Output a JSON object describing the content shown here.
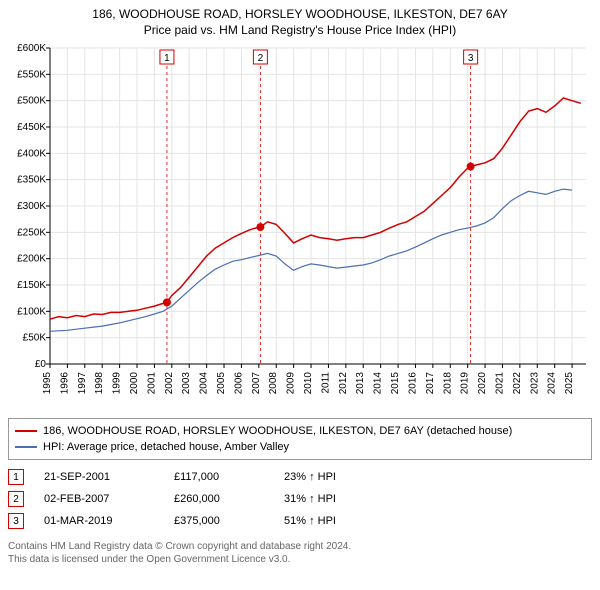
{
  "title_line1": "186, WOODHOUSE ROAD, HORSLEY WOODHOUSE, ILKESTON, DE7 6AY",
  "title_line2": "Price paid vs. HM Land Registry's House Price Index (HPI)",
  "chart": {
    "type": "line",
    "background_color": "#ffffff",
    "grid_color": "#e5e5e5",
    "axis_color": "#000000",
    "tick_font_size": 10,
    "y_label_prefix": "£",
    "y_label_suffix": "K",
    "xlim": [
      1995,
      2025.8
    ],
    "ylim": [
      0,
      600
    ],
    "ytick_step": 50,
    "xticks": [
      1995,
      1996,
      1997,
      1998,
      1999,
      2000,
      2001,
      2002,
      2003,
      2004,
      2005,
      2006,
      2007,
      2008,
      2009,
      2010,
      2011,
      2012,
      2013,
      2014,
      2015,
      2016,
      2017,
      2018,
      2019,
      2020,
      2021,
      2022,
      2023,
      2024,
      2025
    ],
    "series": [
      {
        "name": "property",
        "label": "186, WOODHOUSE ROAD, HORSLEY WOODHOUSE, ILKESTON, DE7 6AY (detached house)",
        "color": "#d40000",
        "line_width": 1.5,
        "data": [
          [
            1995,
            85
          ],
          [
            1995.5,
            90
          ],
          [
            1996,
            88
          ],
          [
            1996.5,
            92
          ],
          [
            1997,
            90
          ],
          [
            1997.5,
            95
          ],
          [
            1998,
            94
          ],
          [
            1998.5,
            98
          ],
          [
            1999,
            98
          ],
          [
            1999.5,
            100
          ],
          [
            2000,
            102
          ],
          [
            2000.5,
            106
          ],
          [
            2001,
            110
          ],
          [
            2001.5,
            115
          ],
          [
            2001.72,
            117
          ],
          [
            2002,
            130
          ],
          [
            2002.5,
            145
          ],
          [
            2003,
            165
          ],
          [
            2003.5,
            185
          ],
          [
            2004,
            205
          ],
          [
            2004.5,
            220
          ],
          [
            2005,
            230
          ],
          [
            2005.5,
            240
          ],
          [
            2006,
            248
          ],
          [
            2006.5,
            255
          ],
          [
            2007,
            260
          ],
          [
            2007.09,
            260
          ],
          [
            2007.5,
            270
          ],
          [
            2008,
            265
          ],
          [
            2008.5,
            248
          ],
          [
            2009,
            230
          ],
          [
            2009.5,
            238
          ],
          [
            2010,
            245
          ],
          [
            2010.5,
            240
          ],
          [
            2011,
            238
          ],
          [
            2011.5,
            235
          ],
          [
            2012,
            238
          ],
          [
            2012.5,
            240
          ],
          [
            2013,
            240
          ],
          [
            2013.5,
            245
          ],
          [
            2014,
            250
          ],
          [
            2014.5,
            258
          ],
          [
            2015,
            265
          ],
          [
            2015.5,
            270
          ],
          [
            2016,
            280
          ],
          [
            2016.5,
            290
          ],
          [
            2017,
            305
          ],
          [
            2017.5,
            320
          ],
          [
            2018,
            335
          ],
          [
            2018.5,
            355
          ],
          [
            2019,
            372
          ],
          [
            2019.17,
            375
          ],
          [
            2019.5,
            378
          ],
          [
            2020,
            382
          ],
          [
            2020.5,
            390
          ],
          [
            2021,
            410
          ],
          [
            2021.5,
            435
          ],
          [
            2022,
            460
          ],
          [
            2022.5,
            480
          ],
          [
            2023,
            485
          ],
          [
            2023.5,
            478
          ],
          [
            2024,
            490
          ],
          [
            2024.5,
            505
          ],
          [
            2025,
            500
          ],
          [
            2025.5,
            495
          ]
        ]
      },
      {
        "name": "hpi",
        "label": "HPI: Average price, detached house, Amber Valley",
        "color": "#4a6fb3",
        "line_width": 1.2,
        "data": [
          [
            1995,
            62
          ],
          [
            1995.5,
            63
          ],
          [
            1996,
            64
          ],
          [
            1996.5,
            66
          ],
          [
            1997,
            68
          ],
          [
            1997.5,
            70
          ],
          [
            1998,
            72
          ],
          [
            1998.5,
            75
          ],
          [
            1999,
            78
          ],
          [
            1999.5,
            82
          ],
          [
            2000,
            86
          ],
          [
            2000.5,
            90
          ],
          [
            2001,
            95
          ],
          [
            2001.5,
            100
          ],
          [
            2002,
            110
          ],
          [
            2002.5,
            125
          ],
          [
            2003,
            140
          ],
          [
            2003.5,
            155
          ],
          [
            2004,
            168
          ],
          [
            2004.5,
            180
          ],
          [
            2005,
            188
          ],
          [
            2005.5,
            195
          ],
          [
            2006,
            198
          ],
          [
            2006.5,
            202
          ],
          [
            2007,
            206
          ],
          [
            2007.5,
            210
          ],
          [
            2008,
            205
          ],
          [
            2008.5,
            190
          ],
          [
            2009,
            178
          ],
          [
            2009.5,
            185
          ],
          [
            2010,
            190
          ],
          [
            2010.5,
            188
          ],
          [
            2011,
            185
          ],
          [
            2011.5,
            182
          ],
          [
            2012,
            184
          ],
          [
            2012.5,
            186
          ],
          [
            2013,
            188
          ],
          [
            2013.5,
            192
          ],
          [
            2014,
            198
          ],
          [
            2014.5,
            205
          ],
          [
            2015,
            210
          ],
          [
            2015.5,
            215
          ],
          [
            2016,
            222
          ],
          [
            2016.5,
            230
          ],
          [
            2017,
            238
          ],
          [
            2017.5,
            245
          ],
          [
            2018,
            250
          ],
          [
            2018.5,
            255
          ],
          [
            2019,
            258
          ],
          [
            2019.5,
            262
          ],
          [
            2020,
            268
          ],
          [
            2020.5,
            278
          ],
          [
            2021,
            295
          ],
          [
            2021.5,
            310
          ],
          [
            2022,
            320
          ],
          [
            2022.5,
            328
          ],
          [
            2023,
            325
          ],
          [
            2023.5,
            322
          ],
          [
            2024,
            328
          ],
          [
            2024.5,
            332
          ],
          [
            2025,
            330
          ]
        ]
      }
    ],
    "events": [
      {
        "n": "1",
        "date_label": "21-SEP-2001",
        "price_label": "£117,000",
        "pct_label": "23% ↑ HPI",
        "year": 2001.72,
        "value": 117,
        "box_y_top": 540,
        "marker_color": "#d40000",
        "dash_color": "#d40000"
      },
      {
        "n": "2",
        "date_label": "02-FEB-2007",
        "price_label": "£260,000",
        "pct_label": "31% ↑ HPI",
        "year": 2007.09,
        "value": 260,
        "box_y_top": 540,
        "marker_color": "#d40000",
        "dash_color": "#d40000"
      },
      {
        "n": "3",
        "date_label": "01-MAR-2019",
        "price_label": "£375,000",
        "pct_label": "51% ↑ HPI",
        "year": 2019.17,
        "value": 375,
        "box_y_top": 540,
        "marker_color": "#d40000",
        "dash_color": "#d40000"
      }
    ]
  },
  "legend": {
    "border_color": "#999999",
    "font_size": 11
  },
  "footnote_line1": "Contains HM Land Registry data © Crown copyright and database right 2024.",
  "footnote_line2": "This data is licensed under the Open Government Licence v3.0."
}
